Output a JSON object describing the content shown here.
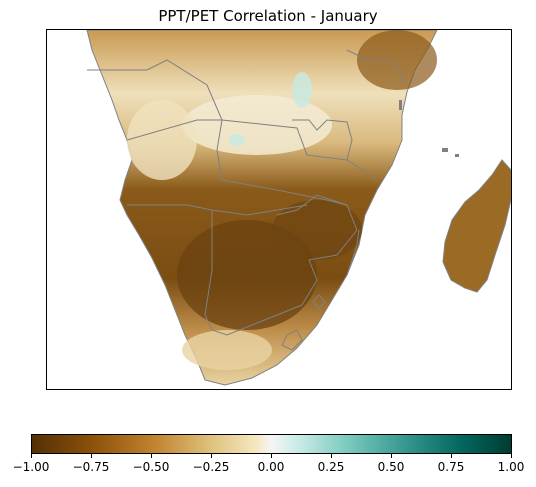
{
  "title": "PPT/PET Correlation - January",
  "colors": {
    "strong_negative": "#543005",
    "negative": "#bf812d",
    "weak_negative": "#f6e8c3",
    "neutral": "#f5f5f5",
    "weak_positive": "#c7eae5",
    "positive": "#35978f",
    "strong_positive": "#003c30",
    "borders": "#808080"
  },
  "colorbar": {
    "min": -1.0,
    "max": 1.0,
    "ticks": [
      -1.0,
      -0.75,
      -0.5,
      -0.25,
      0.0,
      0.25,
      0.5,
      0.75,
      1.0
    ],
    "tick_labels": [
      "−1.00",
      "−0.75",
      "−0.50",
      "−0.25",
      "0.00",
      "0.25",
      "0.50",
      "0.75",
      "1.00"
    ]
  },
  "chart_data": {
    "type": "heatmap",
    "title": "PPT/PET Correlation - January",
    "region": "Southern Africa and Madagascar",
    "colormap": "BrBG",
    "value_range": [
      -1.0,
      1.0
    ]
  }
}
